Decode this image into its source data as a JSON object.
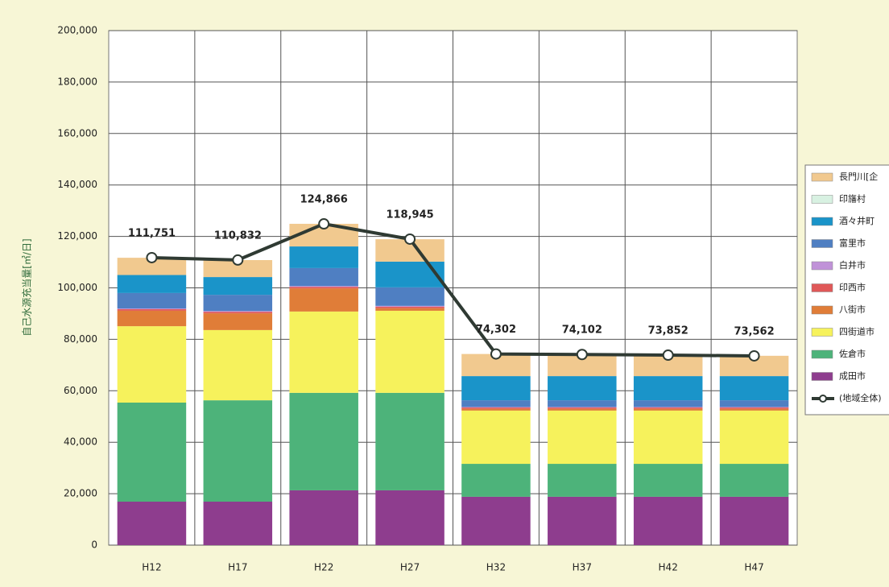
{
  "chart_data": {
    "type": "bar",
    "stacked": true,
    "y_label": "自己水源充当量[㎥/日]",
    "categories": [
      "H12",
      "H17",
      "H22",
      "H27",
      "H32",
      "H37",
      "H42",
      "H47"
    ],
    "series": [
      {
        "name": "成田市",
        "color": "#8e3d8e",
        "values": [
          16900,
          16900,
          21300,
          21300,
          18800,
          18800,
          18800,
          18800
        ]
      },
      {
        "name": "佐倉市",
        "color": "#4db37a",
        "values": [
          38500,
          39400,
          37900,
          37900,
          12800,
          12800,
          12800,
          12800
        ]
      },
      {
        "name": "四街道市",
        "color": "#f6f25c",
        "values": [
          29700,
          27300,
          31600,
          31900,
          20700,
          20700,
          20700,
          20700
        ]
      },
      {
        "name": "八街市",
        "color": "#e07d38",
        "values": [
          6000,
          6500,
          9000,
          1000,
          700,
          700,
          700,
          700
        ]
      },
      {
        "name": "印西市",
        "color": "#e05858",
        "values": [
          600,
          600,
          600,
          600,
          500,
          500,
          500,
          500
        ]
      },
      {
        "name": "白井市",
        "color": "#c092d8",
        "values": [
          300,
          300,
          300,
          300,
          200,
          200,
          200,
          200
        ]
      },
      {
        "name": "富里市",
        "color": "#4f7fc2",
        "values": [
          6000,
          6300,
          7000,
          7200,
          2600,
          2600,
          2600,
          2600
        ]
      },
      {
        "name": "酒々井町",
        "color": "#1a94c9",
        "values": [
          7000,
          6900,
          8400,
          10000,
          9400,
          9400,
          9400,
          9400
        ]
      },
      {
        "name": "印旛村",
        "color": "#d8f1e2",
        "values": [
          0,
          0,
          0,
          0,
          0,
          0,
          0,
          0
        ]
      },
      {
        "name": "長門川[企",
        "color": "#f1c98f",
        "values": [
          6700,
          6600,
          8800,
          8700,
          8600,
          8400,
          8100,
          7900
        ]
      }
    ],
    "line": {
      "name": "(地域全体)",
      "color": "#2f3a33",
      "values": [
        111751,
        110832,
        124866,
        118945,
        74302,
        74102,
        73852,
        73562
      ],
      "value_labels": [
        "111,751",
        "110,832",
        "124,866",
        "118,945",
        "74,302",
        "74,102",
        "73,852",
        "73,562"
      ]
    },
    "ylim": [
      0,
      200000
    ],
    "yticks": [
      0,
      {
        "value": 20000,
        "label": "20,000"
      },
      {
        "value": 40000,
        "label": "40,000"
      },
      {
        "value": 60000,
        "label": "60,000"
      },
      {
        "value": 80000,
        "label": "80,000"
      },
      {
        "value": 100000,
        "label": "100,000"
      },
      {
        "value": 120000,
        "label": "120,000"
      },
      {
        "value": 140000,
        "label": "140,000"
      },
      {
        "value": 160000,
        "label": "160,000"
      },
      {
        "value": 180000,
        "label": "180,000"
      },
      {
        "value": 200000,
        "label": "200,000"
      }
    ],
    "grid": true,
    "legend": "right"
  }
}
